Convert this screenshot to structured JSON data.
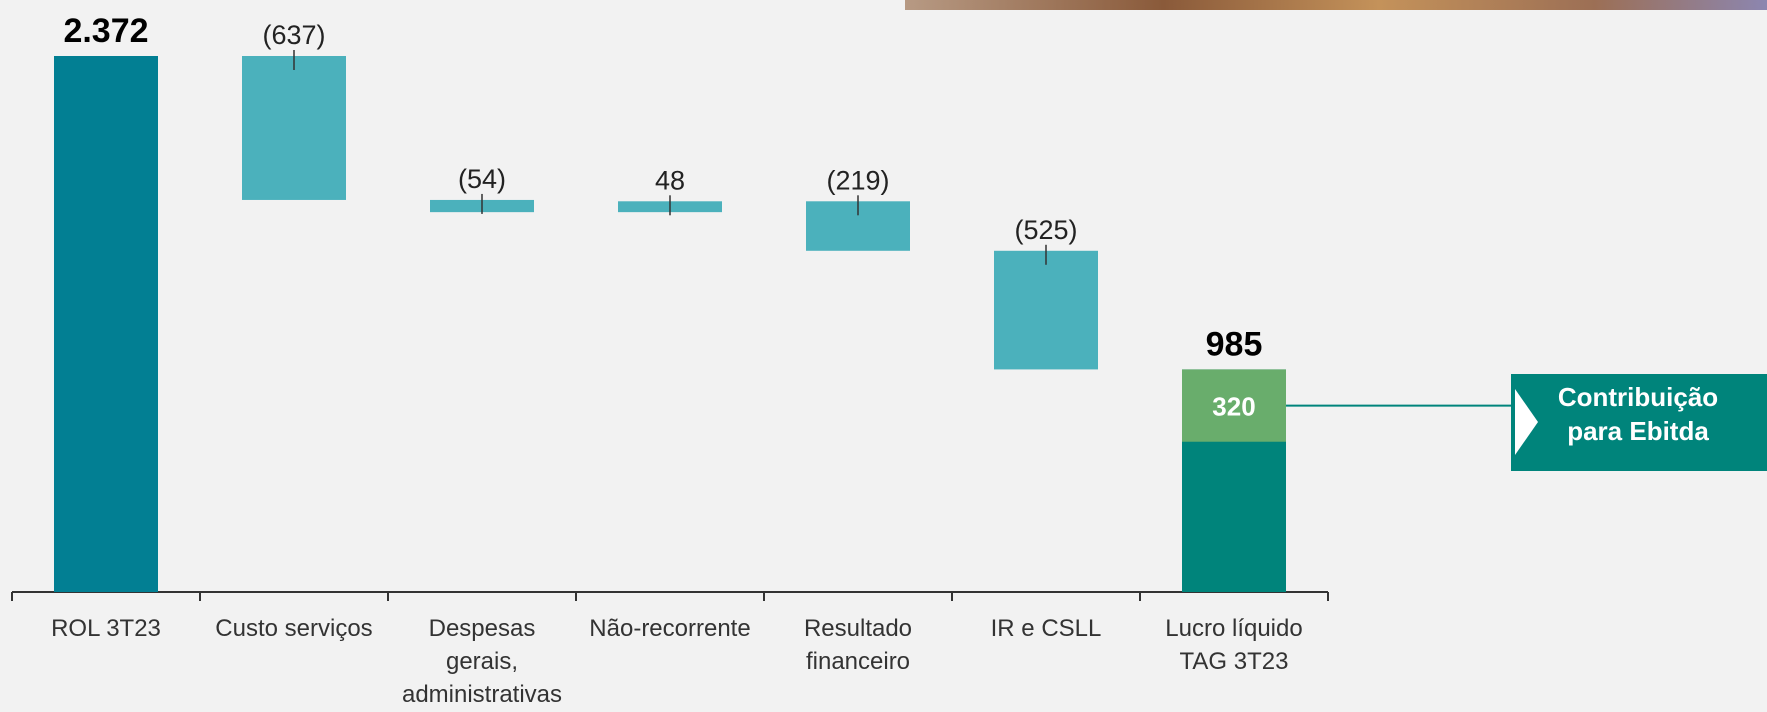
{
  "chart_data": {
    "type": "waterfall",
    "categories": [
      "ROL 3T23",
      "Custo serviços",
      "Despesas\ngerais,\nadministrativas",
      "Não-recorrente",
      "Resultado\nfinanceiro",
      "IR e CSLL",
      "Lucro líquido\nTAG 3T23"
    ],
    "values": [
      2372,
      -637,
      -54,
      48,
      -219,
      -525,
      985
    ],
    "value_labels": [
      "2.372",
      "(637)",
      "(54)",
      "48",
      "(219)",
      "(525)",
      "985"
    ],
    "colors": {
      "start": "#027f93",
      "delta": "#4bb1bc",
      "end": "#00847b"
    },
    "highlight": {
      "value": 320,
      "color": "#69ad6c"
    },
    "annotation": "Contribuição\npara Ebitda"
  }
}
